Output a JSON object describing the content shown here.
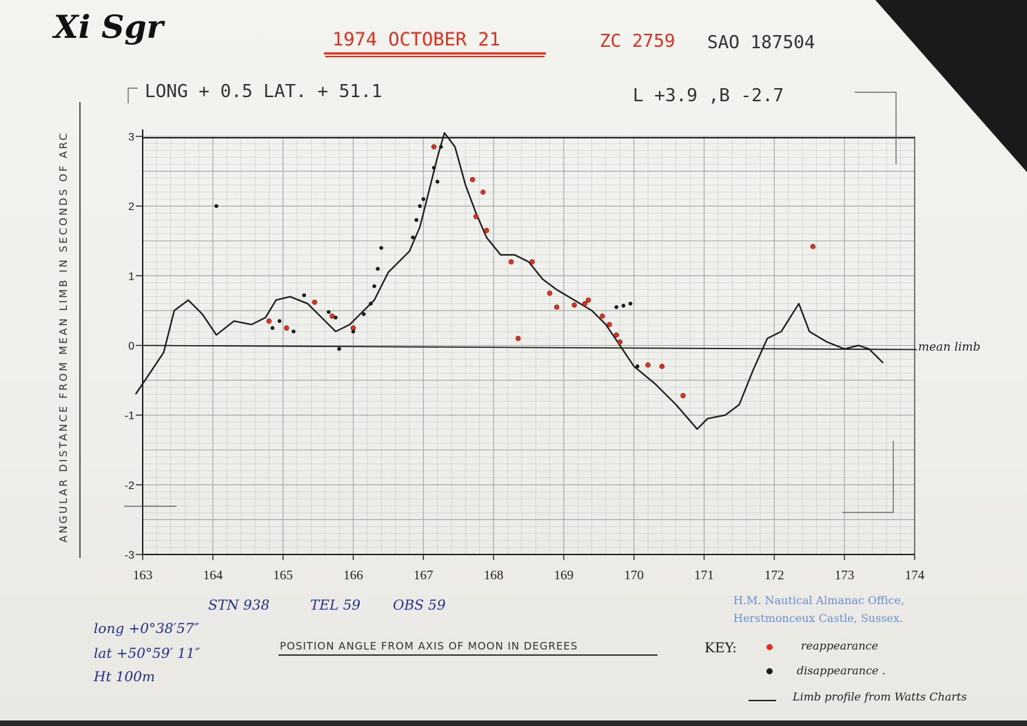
{
  "header": {
    "handwritten_title": "Xi Sgr",
    "date": "1974 OCTOBER   21",
    "zc": "ZC 2759",
    "sao": "SAO 187504",
    "long_lat": "LONG  +  0.5   LAT.  + 51.1",
    "libration": "L +3.9  ,B -2.7"
  },
  "observer": {
    "stn": "STN  938",
    "tel": "TEL 59",
    "obs": "OBS 59",
    "long": "long  +0°38′57″",
    "lat": "lat   +50°59′ 11″",
    "ht": "Ht   100m"
  },
  "office": {
    "line1": "H.M. Nautical Almanac Office,",
    "line2": "Herstmonceux Castle, Sussex."
  },
  "key": {
    "title": "KEY:",
    "reappearance": "reappearance",
    "disappearance": "disappearance .",
    "limb": "Limb profile from Watts Charts"
  },
  "colors": {
    "reappearance": "#e0301e",
    "disappearance": "#1b1b1b",
    "grid": "#9a9a9a",
    "profile": "#1b1b1b"
  },
  "chart_data": {
    "type": "scatter",
    "title": "",
    "xlabel": "POSITION ANGLE FROM AXIS OF MOON IN DEGREES",
    "ylabel": "ANGULAR DISTANCE FROM MEAN LIMB IN SECONDS OF ARC",
    "xlim": [
      163,
      174
    ],
    "ylim": [
      -3,
      3
    ],
    "x_ticks": [
      "163",
      "164",
      "165",
      "166",
      "167",
      "168",
      "169",
      "170",
      "171",
      "172",
      "173",
      "174"
    ],
    "y_ticks": [
      "3",
      "2",
      "1",
      "0",
      "-1",
      "-2",
      "-3"
    ],
    "grid": true,
    "reference_line_label": "mean limb",
    "series": [
      {
        "name": "Limb profile from Watts Charts",
        "kind": "line",
        "points": [
          [
            162.9,
            -0.7
          ],
          [
            163.1,
            -0.4
          ],
          [
            163.3,
            -0.1
          ],
          [
            163.45,
            0.5
          ],
          [
            163.65,
            0.65
          ],
          [
            163.85,
            0.45
          ],
          [
            164.05,
            0.15
          ],
          [
            164.3,
            0.35
          ],
          [
            164.55,
            0.3
          ],
          [
            164.75,
            0.4
          ],
          [
            164.9,
            0.65
          ],
          [
            165.1,
            0.7
          ],
          [
            165.35,
            0.6
          ],
          [
            165.55,
            0.4
          ],
          [
            165.75,
            0.2
          ],
          [
            165.95,
            0.3
          ],
          [
            166.1,
            0.45
          ],
          [
            166.3,
            0.65
          ],
          [
            166.5,
            1.05
          ],
          [
            166.8,
            1.35
          ],
          [
            166.95,
            1.7
          ],
          [
            167.1,
            2.3
          ],
          [
            167.2,
            2.7
          ],
          [
            167.3,
            3.05
          ],
          [
            167.45,
            2.85
          ],
          [
            167.6,
            2.3
          ],
          [
            167.75,
            1.9
          ],
          [
            167.9,
            1.55
          ],
          [
            168.1,
            1.3
          ],
          [
            168.3,
            1.3
          ],
          [
            168.5,
            1.2
          ],
          [
            168.7,
            0.95
          ],
          [
            168.9,
            0.8
          ],
          [
            169.15,
            0.65
          ],
          [
            169.4,
            0.5
          ],
          [
            169.6,
            0.3
          ],
          [
            169.8,
            0.0
          ],
          [
            170.0,
            -0.3
          ],
          [
            170.3,
            -0.55
          ],
          [
            170.6,
            -0.85
          ],
          [
            170.9,
            -1.2
          ],
          [
            171.05,
            -1.05
          ],
          [
            171.3,
            -1.0
          ],
          [
            171.5,
            -0.85
          ],
          [
            171.7,
            -0.35
          ],
          [
            171.9,
            0.1
          ],
          [
            172.1,
            0.2
          ],
          [
            172.35,
            0.6
          ],
          [
            172.5,
            0.2
          ],
          [
            172.75,
            0.05
          ],
          [
            173.0,
            -0.05
          ],
          [
            173.2,
            0.0
          ],
          [
            173.35,
            -0.05
          ],
          [
            173.55,
            -0.25
          ]
        ]
      },
      {
        "name": "reappearance",
        "kind": "points",
        "points": [
          [
            164.8,
            0.35
          ],
          [
            165.05,
            0.25
          ],
          [
            165.45,
            0.62
          ],
          [
            165.7,
            0.42
          ],
          [
            166.0,
            0.25
          ],
          [
            167.15,
            2.85
          ],
          [
            167.7,
            2.38
          ],
          [
            167.85,
            2.2
          ],
          [
            167.75,
            1.85
          ],
          [
            167.9,
            1.65
          ],
          [
            168.25,
            1.2
          ],
          [
            168.55,
            1.2
          ],
          [
            168.35,
            0.1
          ],
          [
            168.8,
            0.75
          ],
          [
            168.9,
            0.55
          ],
          [
            169.15,
            0.58
          ],
          [
            169.3,
            0.6
          ],
          [
            169.35,
            0.65
          ],
          [
            169.55,
            0.42
          ],
          [
            169.65,
            0.3
          ],
          [
            169.75,
            0.15
          ],
          [
            169.8,
            0.05
          ],
          [
            170.2,
            -0.28
          ],
          [
            170.4,
            -0.3
          ],
          [
            170.7,
            -0.72
          ],
          [
            172.55,
            1.42
          ]
        ]
      },
      {
        "name": "disappearance",
        "kind": "points",
        "points": [
          [
            164.05,
            2.0
          ],
          [
            164.85,
            0.25
          ],
          [
            164.95,
            0.35
          ],
          [
            165.15,
            0.2
          ],
          [
            165.3,
            0.72
          ],
          [
            165.65,
            0.48
          ],
          [
            165.75,
            0.4
          ],
          [
            165.8,
            -0.05
          ],
          [
            166.0,
            0.2
          ],
          [
            166.15,
            0.45
          ],
          [
            166.25,
            0.6
          ],
          [
            166.3,
            0.85
          ],
          [
            166.35,
            1.1
          ],
          [
            166.4,
            1.4
          ],
          [
            166.85,
            1.55
          ],
          [
            166.9,
            1.8
          ],
          [
            166.95,
            2.0
          ],
          [
            167.0,
            2.1
          ],
          [
            167.15,
            2.55
          ],
          [
            167.2,
            2.35
          ],
          [
            167.25,
            2.85
          ],
          [
            169.75,
            0.55
          ],
          [
            169.85,
            0.57
          ],
          [
            169.95,
            0.6
          ],
          [
            170.05,
            -0.3
          ]
        ]
      }
    ]
  }
}
